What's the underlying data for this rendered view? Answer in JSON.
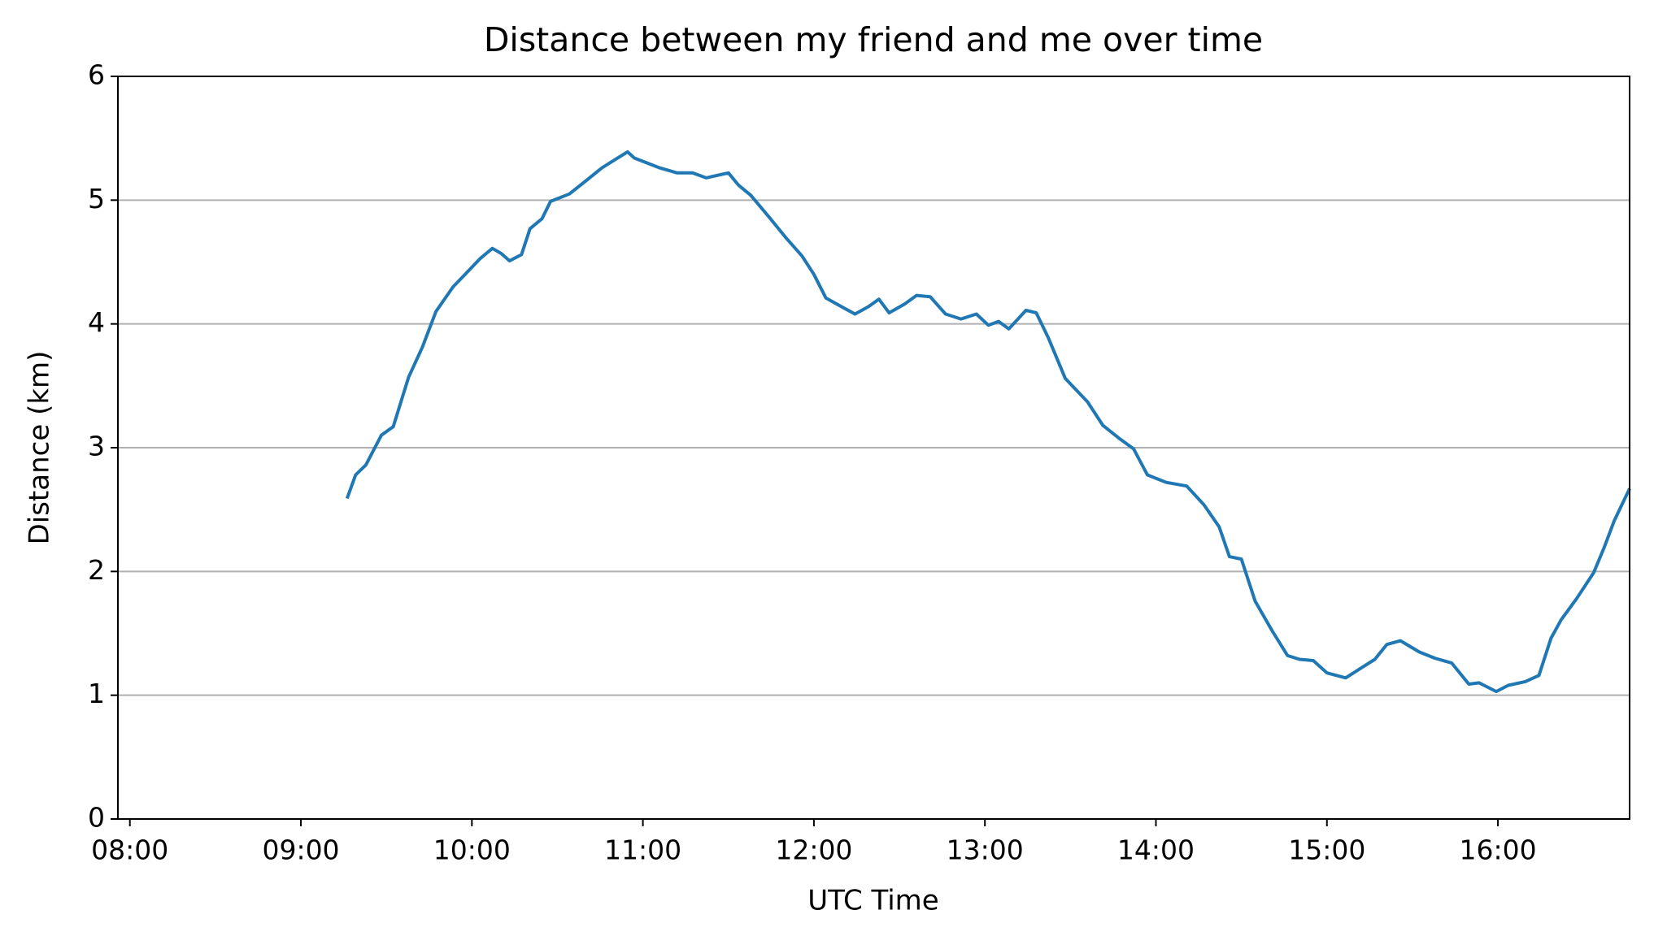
{
  "chart_data": {
    "type": "line",
    "title": "Distance between my friend and me over time",
    "x_label": "UTC Time",
    "y_label": "Distance (km)",
    "x": [
      9.27,
      9.32,
      9.38,
      9.47,
      9.54,
      9.63,
      9.71,
      9.79,
      9.89,
      9.96,
      10.05,
      10.12,
      10.17,
      10.22,
      10.29,
      10.34,
      10.41,
      10.46,
      10.57,
      10.67,
      10.76,
      10.84,
      10.91,
      10.95,
      11.1,
      11.2,
      11.29,
      11.37,
      11.5,
      11.56,
      11.63,
      11.74,
      11.84,
      11.93,
      12.0,
      12.07,
      12.16,
      12.24,
      12.32,
      12.38,
      12.44,
      12.53,
      12.6,
      12.68,
      12.77,
      12.86,
      12.95,
      13.02,
      13.08,
      13.14,
      13.24,
      13.3,
      13.37,
      13.47,
      13.6,
      13.69,
      13.79,
      13.87,
      13.95,
      14.06,
      14.18,
      14.28,
      14.37,
      14.43,
      14.5,
      14.58,
      14.68,
      14.77,
      14.84,
      14.92,
      15.0,
      15.11,
      15.2,
      15.28,
      15.35,
      15.43,
      15.54,
      15.63,
      15.73,
      15.83,
      15.89,
      15.99,
      16.06,
      16.16,
      16.24,
      16.31,
      16.37,
      16.46,
      16.56,
      16.62,
      16.68,
      16.77
    ],
    "series": [
      {
        "name": "Distance",
        "color": "#1f77b4",
        "values": [
          2.59,
          2.78,
          2.86,
          3.1,
          3.17,
          3.57,
          3.81,
          4.1,
          4.3,
          4.4,
          4.53,
          4.61,
          4.57,
          4.51,
          4.56,
          4.77,
          4.85,
          4.99,
          5.05,
          5.16,
          5.26,
          5.33,
          5.39,
          5.34,
          5.26,
          5.22,
          5.22,
          5.18,
          5.22,
          5.12,
          5.04,
          4.86,
          4.69,
          4.55,
          4.4,
          4.21,
          4.14,
          4.08,
          4.14,
          4.2,
          4.09,
          4.16,
          4.23,
          4.22,
          4.08,
          4.04,
          4.08,
          3.99,
          4.02,
          3.96,
          4.11,
          4.09,
          3.89,
          3.56,
          3.37,
          3.18,
          3.07,
          2.99,
          2.78,
          2.72,
          2.69,
          2.54,
          2.36,
          2.12,
          2.1,
          1.76,
          1.52,
          1.32,
          1.29,
          1.28,
          1.18,
          1.14,
          1.22,
          1.29,
          1.41,
          1.44,
          1.35,
          1.3,
          1.26,
          1.09,
          1.1,
          1.03,
          1.08,
          1.11,
          1.16,
          1.46,
          1.61,
          1.78,
          1.99,
          2.19,
          2.41,
          2.67
        ]
      }
    ],
    "xlim": [
      7.93,
      16.77
    ],
    "xticks": [
      {
        "value": 8,
        "label": "08:00"
      },
      {
        "value": 9,
        "label": "09:00"
      },
      {
        "value": 10,
        "label": "10:00"
      },
      {
        "value": 11,
        "label": "11:00"
      },
      {
        "value": 12,
        "label": "12:00"
      },
      {
        "value": 13,
        "label": "13:00"
      },
      {
        "value": 14,
        "label": "14:00"
      },
      {
        "value": 15,
        "label": "15:00"
      },
      {
        "value": 16,
        "label": "16:00"
      }
    ],
    "ylim": [
      0,
      6
    ],
    "yticks": [
      0,
      1,
      2,
      3,
      4,
      5,
      6
    ],
    "grid": "y"
  }
}
